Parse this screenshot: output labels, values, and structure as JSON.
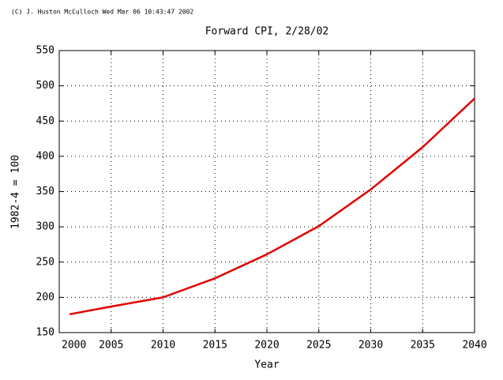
{
  "chart_data": {
    "type": "line",
    "credit": "(C) J. Huston McCulloch Wed Mar 06 10:43:47 2002",
    "title": "Forward CPI, 2/28/02",
    "x_label": "Year",
    "y_label": "1982-4 = 100",
    "x": [
      2001,
      2005,
      2010,
      2015,
      2020,
      2025,
      2030,
      2035,
      2040
    ],
    "series": [
      {
        "color": "#e00000",
        "values": [
          176,
          187,
          200,
          227,
          261,
          301,
          353,
          413,
          482
        ]
      }
    ],
    "xlim": [
      2000,
      2040
    ],
    "xticks": [
      2000,
      2005,
      2010,
      2015,
      2020,
      2025,
      2030,
      2035,
      2040
    ],
    "ylim": [
      150,
      550
    ],
    "yticks": [
      150,
      200,
      250,
      300,
      350,
      400,
      450,
      500,
      550
    ],
    "grid": true
  }
}
